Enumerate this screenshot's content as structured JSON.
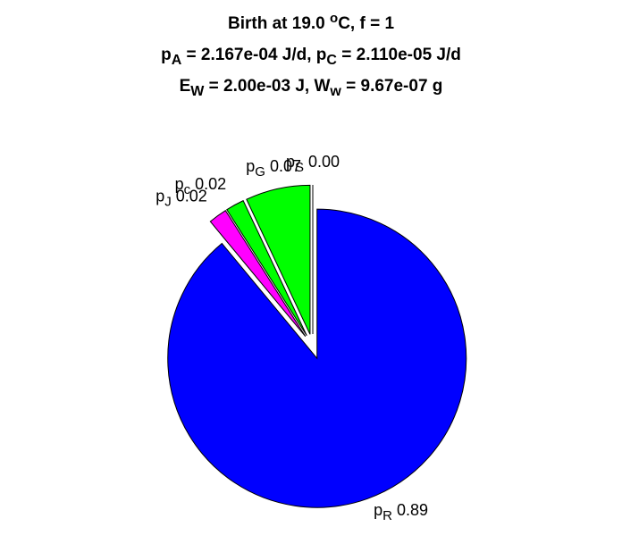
{
  "chart_data": {
    "type": "pie",
    "title": [
      [
        {
          "text": "Birth at 19.0 "
        },
        {
          "text": "o",
          "shift": "sup"
        },
        {
          "text": "C, f = 1"
        }
      ],
      [
        {
          "text": "p"
        },
        {
          "text": "A",
          "shift": "sub"
        },
        {
          "text": " = 2.167e-04 J/d, p"
        },
        {
          "text": "C",
          "shift": "sub"
        },
        {
          "text": " = 2.110e-05 J/d"
        }
      ],
      [
        {
          "text": "E"
        },
        {
          "text": "W",
          "shift": "sub"
        },
        {
          "text": " = 2.00e-03 J, W"
        },
        {
          "text": "w",
          "shift": "sub"
        },
        {
          "text": " = 9.67e-07 g"
        }
      ]
    ],
    "categories": [
      "pS",
      "pG",
      "pc",
      "pJ",
      "pR"
    ],
    "values": [
      0,
      0.07,
      0.02,
      0.02,
      0.89
    ],
    "value_labels": [
      "0.00",
      "0.07",
      "0.02",
      "0.02",
      "0.89"
    ],
    "colors": [
      "#cc0000",
      "#00ff00",
      "#00ff00",
      "#ff00ff",
      "#0000ff"
    ]
  }
}
